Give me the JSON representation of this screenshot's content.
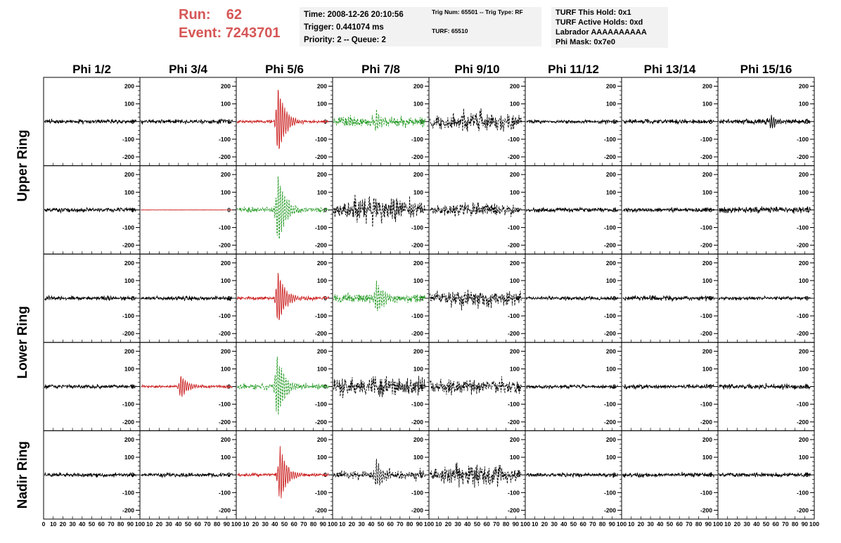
{
  "header": {
    "run_label": "Run:",
    "run_value": "62",
    "event_label": "Event:",
    "event_value": "7243701"
  },
  "info_box_1": {
    "time": "Time: 2008-12-26 20:10:56",
    "trigger": "Trigger: 0.441074 ms",
    "priority": "Priority: 2 -- Queue: 2"
  },
  "info_box_2": {
    "trig": "Trig Num: 65501 -- Trig Type: RF",
    "turf": "TURF: 65510"
  },
  "info_box_3": {
    "hold": "TURF This Hold: 0x1",
    "active": "TURF Active Holds: 0xd",
    "labrador": "Labrador AAAAAAAAAA",
    "phimask": "Phi Mask: 0x7e0"
  },
  "colors": {
    "red": "#cc2222",
    "green": "#229922",
    "black": "#000000",
    "header_red": "#d65656"
  },
  "chart_data": {
    "type": "line",
    "columns": [
      "Phi 1/2",
      "Phi 3/4",
      "Phi 5/6",
      "Phi 7/8",
      "Phi 9/10",
      "Phi 11/12",
      "Phi 13/14",
      "Phi 15/16"
    ],
    "ring_labels": [
      "Upper Ring",
      "Lower Ring",
      "Nadir Ring"
    ],
    "rows": 5,
    "x_range": [
      0,
      100
    ],
    "y_range": [
      -250,
      250
    ],
    "y_ticks": [
      -200,
      -100,
      0,
      100,
      200
    ],
    "x_tick_labels": [
      "0",
      "10",
      "20",
      "30",
      "40",
      "50",
      "60",
      "70",
      "80",
      "90",
      "100"
    ],
    "panels": [
      [
        {
          "color": "black",
          "style": "solid",
          "amp": 12,
          "pulse": 0,
          "pc": 0,
          "grow": 0
        },
        {
          "color": "black",
          "style": "solid",
          "amp": 12,
          "pulse": 0,
          "pc": 0,
          "grow": 0
        },
        {
          "color": "red",
          "style": "solid",
          "amp": 10,
          "pulse": 220,
          "pc": 43,
          "grow": 0
        },
        {
          "color": "green",
          "style": "dashed",
          "amp": 28,
          "pulse": 60,
          "pc": 45,
          "grow": 0
        },
        {
          "color": "black",
          "style": "dashed",
          "amp": 45,
          "pulse": 0,
          "pc": 0,
          "grow": 1
        },
        {
          "color": "black",
          "style": "solid",
          "amp": 10,
          "pulse": 0,
          "pc": 0,
          "grow": 0
        },
        {
          "color": "black",
          "style": "solid",
          "amp": 12,
          "pulse": 0,
          "pc": 0,
          "grow": 0
        },
        {
          "color": "black",
          "style": "solid",
          "amp": 15,
          "pulse": 40,
          "pc": 55,
          "grow": 0
        }
      ],
      [
        {
          "color": "black",
          "style": "solid",
          "amp": 12,
          "pulse": 0,
          "pc": 0,
          "grow": 0
        },
        {
          "color": "red",
          "style": "solid",
          "amp": 1,
          "pulse": 0,
          "pc": 0,
          "grow": 0
        },
        {
          "color": "green",
          "style": "dashed",
          "amp": 15,
          "pulse": 230,
          "pc": 43,
          "grow": 0
        },
        {
          "color": "black",
          "style": "dashed",
          "amp": 55,
          "pulse": 0,
          "pc": 0,
          "grow": 1
        },
        {
          "color": "black",
          "style": "dashed",
          "amp": 30,
          "pulse": 0,
          "pc": 0,
          "grow": 1
        },
        {
          "color": "black",
          "style": "solid",
          "amp": 12,
          "pulse": 0,
          "pc": 0,
          "grow": 0
        },
        {
          "color": "black",
          "style": "solid",
          "amp": 12,
          "pulse": 0,
          "pc": 0,
          "grow": 0
        },
        {
          "color": "black",
          "style": "solid",
          "amp": 18,
          "pulse": 60,
          "pc": 97,
          "grow": 0
        }
      ],
      [
        {
          "color": "black",
          "style": "solid",
          "amp": 12,
          "pulse": 0,
          "pc": 0,
          "grow": 0
        },
        {
          "color": "black",
          "style": "solid",
          "amp": 12,
          "pulse": 0,
          "pc": 0,
          "grow": 0
        },
        {
          "color": "red",
          "style": "solid",
          "amp": 10,
          "pulse": 170,
          "pc": 43,
          "grow": 0
        },
        {
          "color": "green",
          "style": "dashed",
          "amp": 25,
          "pulse": 100,
          "pc": 45,
          "grow": 0
        },
        {
          "color": "black",
          "style": "dashed",
          "amp": 40,
          "pulse": 0,
          "pc": 0,
          "grow": 1
        },
        {
          "color": "black",
          "style": "solid",
          "amp": 10,
          "pulse": 0,
          "pc": 0,
          "grow": 0
        },
        {
          "color": "black",
          "style": "solid",
          "amp": 14,
          "pulse": 0,
          "pc": 0,
          "grow": 0
        },
        {
          "color": "black",
          "style": "solid",
          "amp": 10,
          "pulse": 0,
          "pc": 0,
          "grow": 0
        }
      ],
      [
        {
          "color": "black",
          "style": "solid",
          "amp": 12,
          "pulse": 0,
          "pc": 0,
          "grow": 0
        },
        {
          "color": "red",
          "style": "solid",
          "amp": 8,
          "pulse": 70,
          "pc": 42,
          "grow": 0
        },
        {
          "color": "green",
          "style": "dashed",
          "amp": 15,
          "pulse": 200,
          "pc": 42,
          "grow": 0
        },
        {
          "color": "black",
          "style": "dashed",
          "amp": 55,
          "pulse": 0,
          "pc": 0,
          "grow": 0
        },
        {
          "color": "black",
          "style": "dashed",
          "amp": 40,
          "pulse": 0,
          "pc": 0,
          "grow": 0
        },
        {
          "color": "black",
          "style": "solid",
          "amp": 10,
          "pulse": 0,
          "pc": 0,
          "grow": 0
        },
        {
          "color": "black",
          "style": "solid",
          "amp": 12,
          "pulse": 0,
          "pc": 0,
          "grow": 0
        },
        {
          "color": "black",
          "style": "solid",
          "amp": 14,
          "pulse": 0,
          "pc": 0,
          "grow": 0
        }
      ],
      [
        {
          "color": "black",
          "style": "solid",
          "amp": 12,
          "pulse": 0,
          "pc": 0,
          "grow": 0
        },
        {
          "color": "black",
          "style": "solid",
          "amp": 12,
          "pulse": 0,
          "pc": 0,
          "grow": 0
        },
        {
          "color": "red",
          "style": "solid",
          "amp": 10,
          "pulse": 170,
          "pc": 45,
          "grow": 0
        },
        {
          "color": "black",
          "style": "dashed",
          "amp": 25,
          "pulse": 90,
          "pc": 45,
          "grow": 0
        },
        {
          "color": "black",
          "style": "dashed",
          "amp": 45,
          "pulse": 0,
          "pc": 0,
          "grow": 1
        },
        {
          "color": "black",
          "style": "solid",
          "amp": 12,
          "pulse": 0,
          "pc": 0,
          "grow": 0
        },
        {
          "color": "black",
          "style": "solid",
          "amp": 12,
          "pulse": 0,
          "pc": 0,
          "grow": 0
        },
        {
          "color": "black",
          "style": "solid",
          "amp": 12,
          "pulse": 0,
          "pc": 0,
          "grow": 0
        }
      ]
    ]
  }
}
